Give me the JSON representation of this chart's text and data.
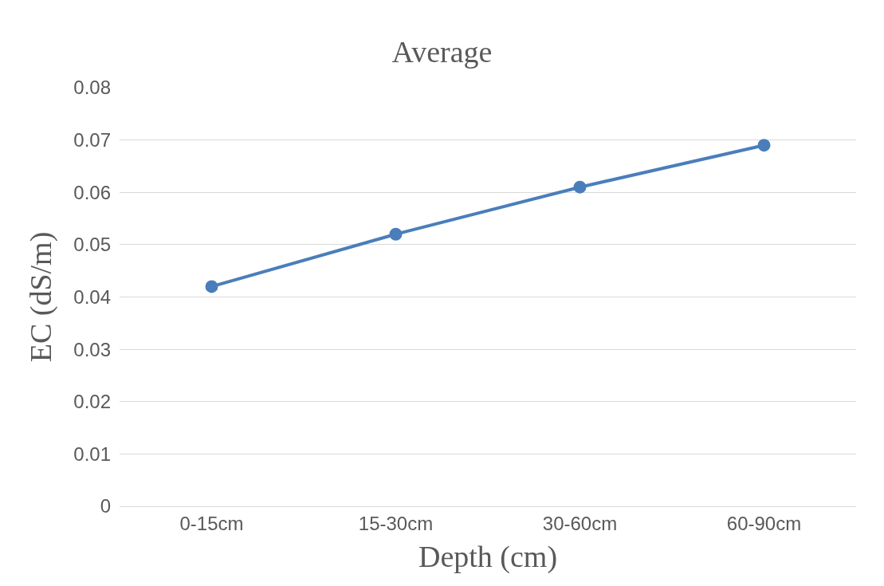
{
  "chart_data": {
    "type": "line",
    "title": "Average",
    "xlabel": "Depth (cm)",
    "ylabel": "EC (dS/m)",
    "categories": [
      "0-15cm",
      "15-30cm",
      "30-60cm",
      "60-90cm"
    ],
    "series": [
      {
        "color": "#4a7ebb",
        "values": [
          0.042,
          0.052,
          0.061,
          0.069
        ]
      }
    ],
    "ylim": [
      0,
      0.08
    ],
    "yticks": [
      {
        "value": 0,
        "label": "0"
      },
      0.01,
      0.02,
      0.03,
      0.04,
      0.05,
      0.06,
      0.07,
      0.08
    ],
    "grid": "y",
    "marker": "circle",
    "line_style": "solid"
  }
}
